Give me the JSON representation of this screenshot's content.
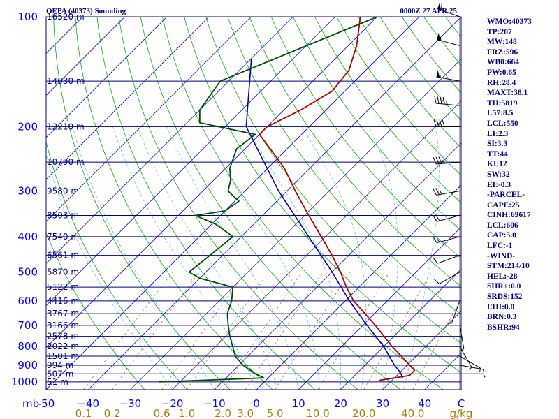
{
  "header": {
    "station": "OEPA (40373) Sounding",
    "time": "0000Z 27 APR 25"
  },
  "indices": [
    "WMO:40373",
    "TP:207",
    "MW:148",
    "FRZ:596",
    "WB0:664",
    "PW:0.65",
    "RH:28.4",
    "MAXT:38.1",
    "TH:5819",
    "L57:8.5",
    "LCL:550",
    "LI:2.3",
    "SI:3.3",
    "TT:44",
    "KI:12",
    "SW:32",
    "EI:-0.3",
    "-PARCEL-",
    "CAPE:25",
    "CINH:69617",
    "LCL:606",
    "CAP:5.0",
    "LFC:-1",
    "-WIND-",
    "STM:214/10",
    "HEL:-28",
    "SHR+:0.0",
    "SRDS:152",
    "EHI:0.0",
    "BRN:0.3",
    "BSHR:94"
  ],
  "chart_data": {
    "type": "skew-t",
    "pressure_unit_label": "mb",
    "pressure_levels": [
      100,
      200,
      300,
      400,
      500,
      600,
      700,
      800,
      900,
      1000
    ],
    "pressure_tick_labels": [
      "100",
      "200",
      "300",
      "400",
      "500",
      "600",
      "700",
      "800",
      "900",
      "1000"
    ],
    "height_labels": [
      {
        "p": 100,
        "text": "16520 m"
      },
      {
        "p": 150,
        "text": "14030 m"
      },
      {
        "p": 200,
        "text": "12210 m"
      },
      {
        "p": 250,
        "text": "10790 m"
      },
      {
        "p": 300,
        "text": "9580 m"
      },
      {
        "p": 350,
        "text": "8503 m"
      },
      {
        "p": 400,
        "text": "7540 m"
      },
      {
        "p": 450,
        "text": "6561 m"
      },
      {
        "p": 500,
        "text": "5870 m"
      },
      {
        "p": 550,
        "text": "5122 m"
      },
      {
        "p": 600,
        "text": "4416 m"
      },
      {
        "p": 650,
        "text": "3767 m"
      },
      {
        "p": 700,
        "text": "3166 m"
      },
      {
        "p": 750,
        "text": "2578 m"
      },
      {
        "p": 800,
        "text": "2022 m"
      },
      {
        "p": 850,
        "text": "1501 m"
      },
      {
        "p": 900,
        "text": "994 m"
      },
      {
        "p": 950,
        "text": "507 m"
      },
      {
        "p": 1000,
        "text": "51 m"
      }
    ],
    "temperature_ticks": [
      -50,
      -40,
      -30,
      -20,
      -10,
      0,
      10,
      20,
      30,
      40
    ],
    "temperature_tick_labels": [
      "-50",
      "−40",
      "−30",
      "−20",
      "−10",
      "0",
      "10",
      "20",
      "30",
      "40"
    ],
    "temperature_unit": "C",
    "mixing_ratio_ticks": [
      0.1,
      0.2,
      0.6,
      1.0,
      2.0,
      3.0,
      5.0,
      10.0,
      20.0,
      40.0
    ],
    "mixing_ratio_tick_labels": [
      "0.1",
      "0.2",
      "0.6",
      "1.0",
      "2.0",
      "3.0",
      "5.0",
      "10.0",
      "20.0",
      "40.0"
    ],
    "mixing_ratio_unit": "g/kg",
    "temperature_profile": [
      {
        "p": 100,
        "t": -64
      },
      {
        "p": 120,
        "t": -58
      },
      {
        "p": 140,
        "t": -54
      },
      {
        "p": 160,
        "t": -53
      },
      {
        "p": 180,
        "t": -56
      },
      {
        "p": 200,
        "t": -60
      },
      {
        "p": 210,
        "t": -60
      },
      {
        "p": 230,
        "t": -54
      },
      {
        "p": 260,
        "t": -46
      },
      {
        "p": 300,
        "t": -38
      },
      {
        "p": 350,
        "t": -29
      },
      {
        "p": 400,
        "t": -21
      },
      {
        "p": 450,
        "t": -14
      },
      {
        "p": 500,
        "t": -8
      },
      {
        "p": 550,
        "t": -3
      },
      {
        "p": 600,
        "t": 2
      },
      {
        "p": 700,
        "t": 13
      },
      {
        "p": 800,
        "t": 22
      },
      {
        "p": 880,
        "t": 29
      },
      {
        "p": 930,
        "t": 33
      },
      {
        "p": 960,
        "t": 33
      },
      {
        "p": 975,
        "t": 30
      },
      {
        "p": 990,
        "t": 27
      }
    ],
    "dewpoint_profile": [
      {
        "p": 100,
        "t": -60
      },
      {
        "p": 150,
        "t": -82
      },
      {
        "p": 180,
        "t": -80
      },
      {
        "p": 195,
        "t": -77
      },
      {
        "p": 210,
        "t": -61
      },
      {
        "p": 230,
        "t": -62
      },
      {
        "p": 260,
        "t": -59
      },
      {
        "p": 280,
        "t": -56
      },
      {
        "p": 300,
        "t": -54
      },
      {
        "p": 320,
        "t": -49
      },
      {
        "p": 340,
        "t": -50
      },
      {
        "p": 350,
        "t": -56
      },
      {
        "p": 370,
        "t": -49
      },
      {
        "p": 400,
        "t": -42
      },
      {
        "p": 450,
        "t": -43
      },
      {
        "p": 500,
        "t": -44
      },
      {
        "p": 520,
        "t": -40
      },
      {
        "p": 550,
        "t": -30
      },
      {
        "p": 600,
        "t": -27
      },
      {
        "p": 650,
        "t": -25
      },
      {
        "p": 700,
        "t": -22
      },
      {
        "p": 750,
        "t": -19
      },
      {
        "p": 850,
        "t": -13
      },
      {
        "p": 900,
        "t": -9
      },
      {
        "p": 950,
        "t": -4
      },
      {
        "p": 975,
        "t": -1
      },
      {
        "p": 1000,
        "t": -25
      }
    ],
    "parcel_profile": [
      {
        "p": 130,
        "t": -80
      },
      {
        "p": 200,
        "t": -65
      },
      {
        "p": 300,
        "t": -42
      },
      {
        "p": 400,
        "t": -24
      },
      {
        "p": 500,
        "t": -10
      },
      {
        "p": 600,
        "t": 1
      },
      {
        "p": 700,
        "t": 11
      },
      {
        "p": 800,
        "t": 20
      },
      {
        "p": 900,
        "t": 27
      },
      {
        "p": 940,
        "t": 30
      },
      {
        "p": 975,
        "t": 32
      }
    ],
    "colors": {
      "isobars": "#000080",
      "isotherms": "#0000c0",
      "dry_adiabats": "#00b000",
      "moist_adiabats": "#70c0e0",
      "mixing_ratio": "#a08030",
      "temperature": "#b00000",
      "dewpoint": "#005000",
      "parcel": "#0000b0",
      "wind": "#000000"
    },
    "wind_barbs": [
      {
        "p": 100,
        "dir": 290,
        "spd": 60
      },
      {
        "p": 120,
        "dir": 285,
        "spd": 55
      },
      {
        "p": 150,
        "dir": 280,
        "spd": 55
      },
      {
        "p": 175,
        "dir": 275,
        "spd": 45
      },
      {
        "p": 200,
        "dir": 270,
        "spd": 40
      },
      {
        "p": 250,
        "dir": 265,
        "spd": 35
      },
      {
        "p": 300,
        "dir": 260,
        "spd": 25
      },
      {
        "p": 350,
        "dir": 255,
        "spd": 20
      },
      {
        "p": 400,
        "dir": 255,
        "spd": 15
      },
      {
        "p": 450,
        "dir": 250,
        "spd": 10
      },
      {
        "p": 500,
        "dir": 240,
        "spd": 10
      },
      {
        "p": 600,
        "dir": 200,
        "spd": 5
      },
      {
        "p": 700,
        "dir": 170,
        "spd": 5
      },
      {
        "p": 800,
        "dir": 150,
        "spd": 5
      },
      {
        "p": 850,
        "dir": 120,
        "spd": 5
      },
      {
        "p": 900,
        "dir": 100,
        "spd": 5
      },
      {
        "p": 950,
        "dir": 90,
        "spd": 5
      }
    ]
  }
}
